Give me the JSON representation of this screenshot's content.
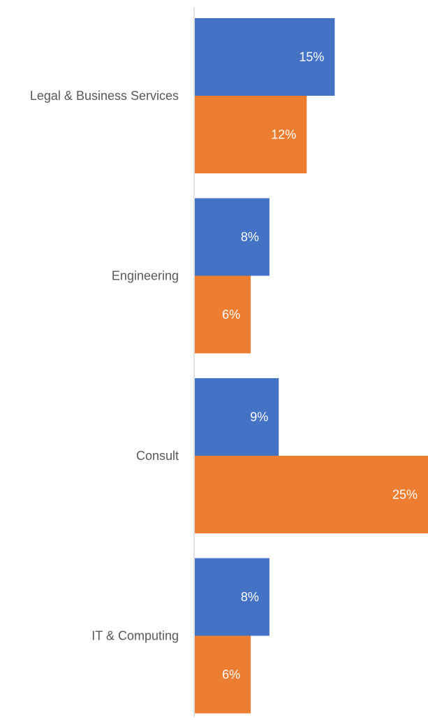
{
  "chart_data": {
    "type": "bar",
    "orientation": "horizontal",
    "categories": [
      "Legal & Business Services",
      "Engineering",
      "Consult",
      "IT & Computing"
    ],
    "series": [
      {
        "values": [
          15,
          8,
          9,
          8
        ],
        "labels": [
          "15%",
          "8%",
          "9%",
          "8%"
        ],
        "color": "#4472c4"
      },
      {
        "values": [
          12,
          6,
          25,
          6
        ],
        "labels": [
          "12%",
          "6%",
          "25%",
          "6%"
        ],
        "color": "#ed7d31"
      }
    ],
    "value_unit": "%",
    "xlim": [
      0,
      25
    ],
    "grid": false,
    "legend": "none",
    "title": "",
    "xlabel": "",
    "ylabel": ""
  }
}
